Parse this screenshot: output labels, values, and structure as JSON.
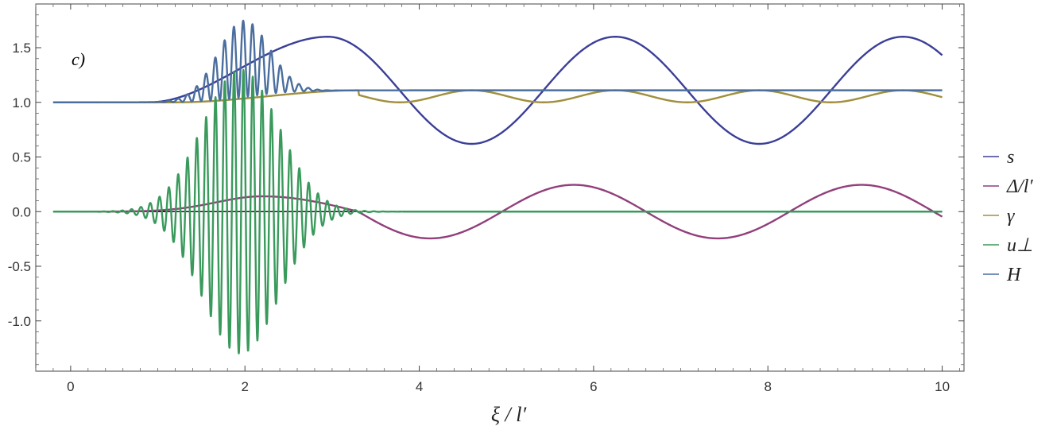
{
  "chart_data": {
    "type": "line",
    "panel_label": "c)",
    "title": "",
    "xlabel": "ξ / l′",
    "ylabel": "",
    "xlim": [
      -0.4,
      10.25
    ],
    "ylim": [
      -1.46,
      1.9
    ],
    "x_ticks": [
      0,
      2,
      4,
      6,
      8,
      10
    ],
    "x_tick_labels": [
      "0",
      "2",
      "4",
      "6",
      "8",
      "10"
    ],
    "y_ticks": [
      -1.0,
      -0.5,
      0.0,
      0.5,
      1.0,
      1.5
    ],
    "y_tick_labels": [
      "-1.0",
      "-0.5",
      "0.0",
      "0.5",
      "1.0",
      "1.5"
    ],
    "grid": false,
    "legend_position": "right",
    "series": [
      {
        "name": "s",
        "color": "#3b3f97",
        "description_points": {
          "x": [
            -0.2,
            1.0,
            2.0,
            2.95,
            4.6,
            6.25,
            7.9,
            9.55,
            10.0
          ],
          "y": [
            1.0,
            1.01,
            1.3,
            1.6,
            0.62,
            1.6,
            0.62,
            1.6,
            1.47
          ]
        }
      },
      {
        "name": "Δ/l′",
        "color": "#923f7a",
        "description_points": {
          "x": [
            -0.2,
            1.0,
            2.2,
            3.3,
            4.0,
            5.2,
            6.85,
            7.35,
            8.5,
            10.0
          ],
          "y": [
            0.0,
            0.02,
            0.14,
            0.0,
            -0.24,
            0.24,
            -0.2,
            -0.24,
            0.24,
            -0.14
          ]
        }
      },
      {
        "name": "γ",
        "color": "#a08f3e",
        "description_points": {
          "x": [
            -0.2,
            1.0,
            2.0,
            3.3,
            4.0,
            4.6,
            5.25,
            6.25,
            7.25,
            7.9,
            8.55,
            9.55,
            10.0
          ],
          "y": [
            1.0,
            1.0,
            1.05,
            1.11,
            1.0,
            1.11,
            1.0,
            1.11,
            1.0,
            1.11,
            1.0,
            1.11,
            1.07
          ]
        }
      },
      {
        "name": "u⊥",
        "color": "#3a9a5c",
        "description_points": {
          "x": [
            -0.2,
            1.0,
            1.5,
            2.0,
            2.5,
            3.0,
            4.0,
            10.0
          ],
          "y": [
            0.0,
            0.25,
            0.8,
            1.3,
            0.9,
            0.35,
            0.0,
            0.0
          ]
        }
      },
      {
        "name": "H",
        "color": "#4a6e9e",
        "description_points": {
          "x": [
            -0.2,
            1.0,
            2.0,
            3.0,
            10.0
          ],
          "y": [
            1.0,
            1.02,
            1.75,
            1.11,
            1.11
          ]
        }
      }
    ]
  }
}
